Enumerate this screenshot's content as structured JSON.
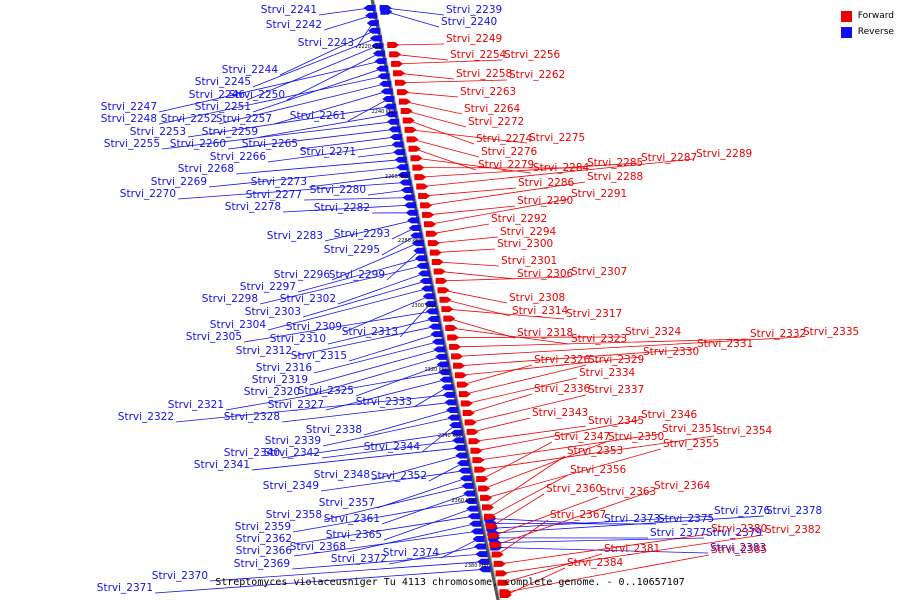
{
  "legend": {
    "forward_label": "Forward",
    "reverse_label": "Reverse",
    "forward_color": "#ee0000",
    "reverse_color": "#1010ee"
  },
  "caption": "Streptomyces violaceusniger Tu 4113 chromosome, complete genome. - 0..10657107",
  "axis_ticks": [
    "2220 kbp",
    "2240 kbp",
    "2260 kbp",
    "2280 kbp",
    "2300 kbp",
    "2320 kbp",
    "2340 kbp",
    "2360 kbp",
    "2380 kbp"
  ],
  "reverse_genes": [
    "Strvi_2241",
    "Strvi_2242",
    "Strvi_2243",
    "Strvi_2244",
    "Strvi_2245",
    "Strvi_2246",
    "Strvi_2250",
    "Strvi_2247",
    "Strvi_2251",
    "Strvi_2248",
    "Strvi_2252",
    "Strvi_2257",
    "Strvi_2261",
    "Strvi_2253",
    "Strvi_2259",
    "Strvi_2255",
    "Strvi_2260",
    "Strvi_2265",
    "Strvi_2266",
    "Strvi_2271",
    "Strvi_2268",
    "Strvi_2269",
    "Strvi_2273",
    "Strvi_2270",
    "Strvi_2280",
    "Strvi_2277",
    "Strvi_2278",
    "Strvi_2282",
    "Strvi_2283",
    "Strvi_2293",
    "Strvi_2295",
    "Strvi_2296",
    "Strvi_2299",
    "Strvi_2297",
    "Strvi_2298",
    "Strvi_2302",
    "Strvi_2303",
    "Strvi_2304",
    "Strvi_2309",
    "Strvi_2313",
    "Strvi_2305",
    "Strvi_2310",
    "Strvi_2312",
    "Strvi_2315",
    "Strvi_2316",
    "Strvi_2319",
    "Strvi_2320",
    "Strvi_2325",
    "Strvi_2321",
    "Strvi_2327",
    "Strvi_2333",
    "Strvi_2322",
    "Strvi_2328",
    "Strvi_2338",
    "Strvi_2339",
    "Strvi_2344",
    "Strvi_2340",
    "Strvi_2342",
    "Strvi_2341",
    "Strvi_2348",
    "Strvi_2352",
    "Strvi_2349",
    "Strvi_2357",
    "Strvi_2358",
    "Strvi_2361",
    "Strvi_2359",
    "Strvi_2365",
    "Strvi_2362",
    "Strvi_2368",
    "Strvi_2366",
    "Strvi_2374",
    "Strvi_2372",
    "Strvi_2369",
    "Strvi_2370",
    "Strvi_2371",
    "Strvi_2239",
    "Strvi_2240",
    "Strvi_2373",
    "Strvi_2375",
    "Strvi_2376",
    "Strvi_2378",
    "Strvi_2377",
    "Strvi_2379",
    "Strvi_2383"
  ],
  "forward_genes": [
    "Strvi_2249",
    "Strvi_2254",
    "Strvi_2256",
    "Strvi_2258",
    "Strvi_2262",
    "Strvi_2263",
    "Strvi_2264",
    "Strvi_2272",
    "Strvi_2274",
    "Strvi_2275",
    "Strvi_2276",
    "Strvi_2279",
    "Strvi_2284",
    "Strvi_2285",
    "Strvi_2287",
    "Strvi_2289",
    "Strvi_2286",
    "Strvi_2288",
    "Strvi_2290",
    "Strvi_2291",
    "Strvi_2292",
    "Strvi_2294",
    "Strvi_2300",
    "Strvi_2301",
    "Strvi_2306",
    "Strvi_2307",
    "Strvi_2308",
    "Strvi_2314",
    "Strvi_2317",
    "Strvi_2318",
    "Strvi_2323",
    "Strvi_2324",
    "Strvi_2332",
    "Strvi_2335",
    "Strvi_2331",
    "Strvi_2330",
    "Strvi_2326",
    "Strvi_2329",
    "Strvi_2334",
    "Strvi_2336",
    "Strvi_2337",
    "Strvi_2343",
    "Strvi_2345",
    "Strvi_2346",
    "Strvi_2351",
    "Strvi_2354",
    "Strvi_2347",
    "Strvi_2350",
    "Strvi_2355",
    "Strvi_2353",
    "Strvi_2356",
    "Strvi_2360",
    "Strvi_2363",
    "Strvi_2364",
    "Strvi_2367",
    "Strvi_2380",
    "Strvi_2382",
    "Strvi_2381",
    "Strvi_2385",
    "Strvi_2384"
  ]
}
